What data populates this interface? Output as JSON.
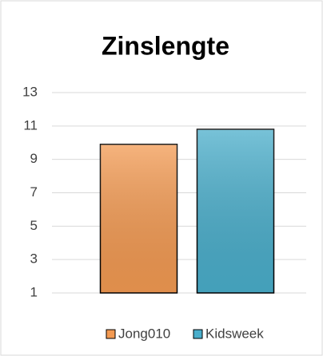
{
  "chart_data": {
    "type": "bar",
    "title": "Zinslengte",
    "categories": [
      null
    ],
    "series": [
      {
        "name": "Jong010",
        "color": "#f39a52",
        "values": [
          9.9
        ]
      },
      {
        "name": "Kidsweek",
        "color": "#4aaecb",
        "values": [
          10.8
        ]
      }
    ],
    "ylim": [
      1,
      13
    ],
    "yticks": [
      1,
      3,
      5,
      7,
      9,
      11,
      13
    ],
    "grid": true,
    "legend": "bottom"
  }
}
